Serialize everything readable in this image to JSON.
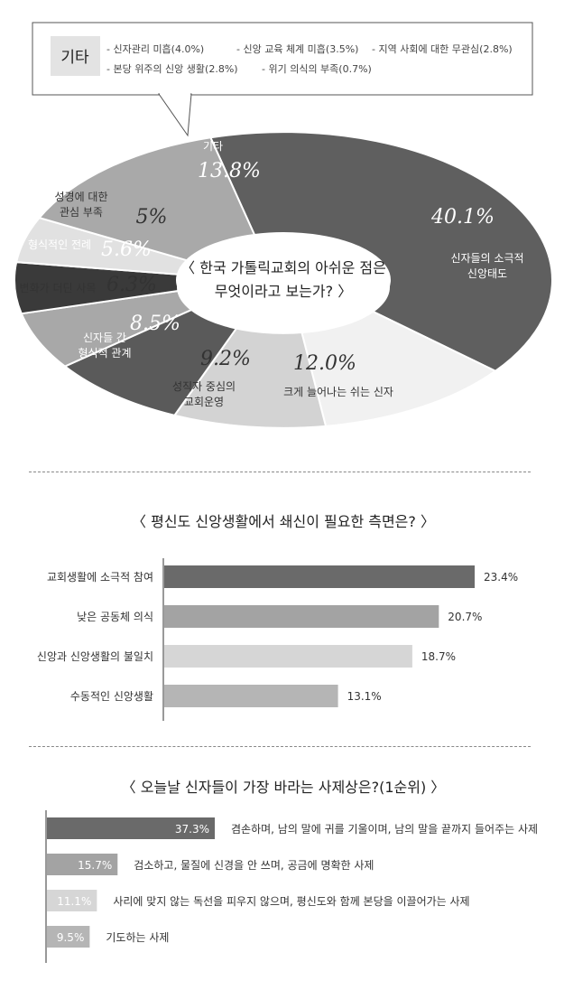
{
  "chart_data": [
    {
      "type": "pie",
      "title": "〈 한국 가톨릭교회의 아쉬운 점은 무엇이라고 보는가? 〉",
      "title_lines": [
        "〈 한국 가톨릭교회의 아쉬운 점은",
        "무엇이라고 보는가? 〉"
      ],
      "slices": [
        {
          "label": "신자들의 소극적 신앙태도",
          "label_lines": [
            "신자들의 소극적",
            "신앙태도"
          ],
          "value": 40.1,
          "value_label": "40.1%",
          "color": "#5f5f5f"
        },
        {
          "label": "크게 늘어나는 쉬는 신자",
          "label_lines": [
            "크게 늘어나는 쉬는 신자"
          ],
          "value": 12.0,
          "value_label": "12.0%",
          "color": "#f1f1f1"
        },
        {
          "label": "성직자 중심의 교회운영",
          "label_lines": [
            "성직자 중심의",
            "교회운영"
          ],
          "value": 9.2,
          "value_label": "9.2%",
          "color": "#d3d3d3"
        },
        {
          "label": "신자들 간 형식적 관계",
          "label_lines": [
            "신자들 간",
            "형식적 관계"
          ],
          "value": 8.5,
          "value_label": "8.5%",
          "color": "#5a5a5a"
        },
        {
          "label": "변화가 더딘 사목",
          "label_lines": [
            "변화가 더딘 사목"
          ],
          "value": 6.3,
          "value_label": "6.3%",
          "color": "#a8a8a8"
        },
        {
          "label": "형식적인 전례",
          "label_lines": [
            "형식적인 전례"
          ],
          "value": 5.6,
          "value_label": "5.6%",
          "color": "#3a3a3a"
        },
        {
          "label": "성경에 대한 관심 부족",
          "label_lines": [
            "성경에 대한",
            "관심 부족"
          ],
          "value": 5.0,
          "value_label": "5%",
          "color": "#e1e1e1"
        },
        {
          "label": "기타",
          "label_lines": [
            "기타"
          ],
          "value": 13.8,
          "value_label": "13.8%",
          "color": "#a9a9a9"
        }
      ],
      "callout": {
        "heading": "기타",
        "items": [
          "- 신자관리 미흡(4.0%)",
          "- 신앙 교육 체계 미흡(3.5%)",
          "- 지역 사회에 대한 무관심(2.8%)",
          "- 본당 위주의 신앙 생활(2.8%)",
          "- 위기 의식의 부족(0.7%)"
        ]
      }
    },
    {
      "type": "bar",
      "orientation": "horizontal",
      "title": "〈 평신도 신앙생활에서 쇄신이 필요한 측면은? 〉",
      "categories": [
        "교회생활에 소극적 참여",
        "낮은 공동체 의식",
        "신앙과 신앙생활의 불일치",
        "수동적인 신앙생활"
      ],
      "values": [
        23.4,
        20.7,
        18.7,
        13.1
      ],
      "value_labels": [
        "23.4%",
        "20.7%",
        "18.7%",
        "13.1%"
      ],
      "colors": [
        "#6a6a6a",
        "#a3a3a3",
        "#d6d6d6",
        "#b5b5b5"
      ]
    },
    {
      "type": "bar",
      "orientation": "horizontal",
      "title": "〈 오늘날 신자들이 가장 바라는 사제상은?(1순위) 〉",
      "categories": [
        "겸손하며, 남의 말에 귀를 기울이며, 남의 말을 끝까지 들어주는 사제",
        "검소하고, 물질에 신경을 안 쓰며, 공금에 명확한 사제",
        "사리에 맞지 않는 독선을 피우지 않으며, 평신도와 함께 본당을 이끌어가는 사제",
        "기도하는 사제"
      ],
      "values": [
        37.3,
        15.7,
        11.1,
        9.5
      ],
      "value_labels": [
        "37.3%",
        "15.7%",
        "11.1%",
        "9.5%"
      ],
      "colors": [
        "#6a6a6a",
        "#a3a3a3",
        "#d6d6d6",
        "#b5b5b5"
      ]
    }
  ]
}
